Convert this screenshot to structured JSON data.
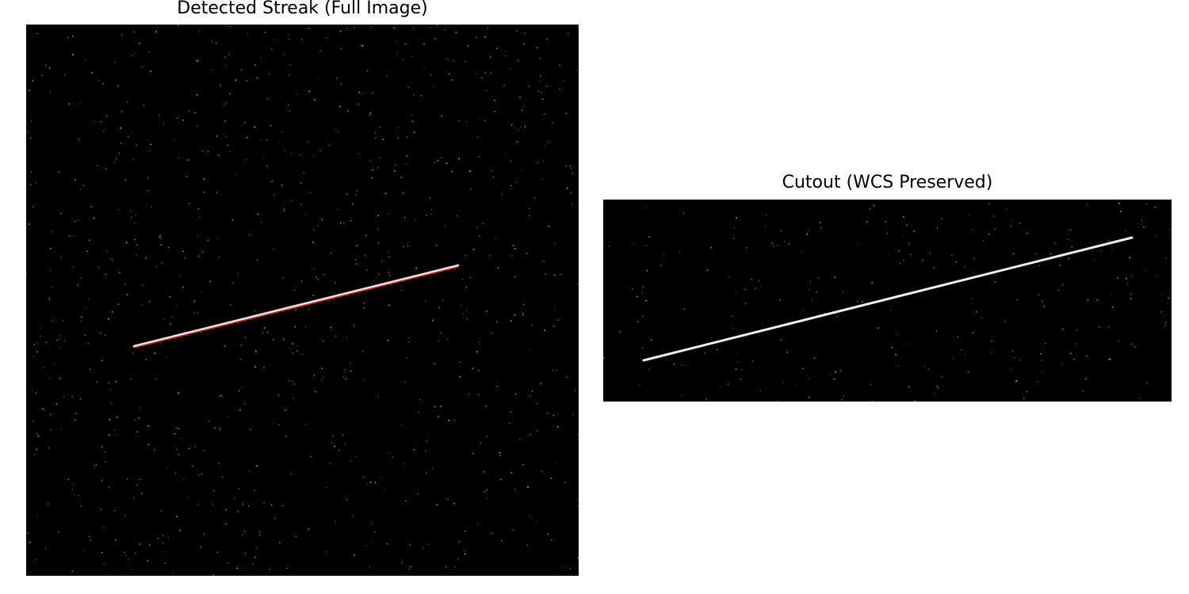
{
  "panels": {
    "full_image": {
      "title": "Detected Streak (Full Image)",
      "background_color": "#000000",
      "star_color": "#8a8a8a",
      "streak_color": "#e8e8e8",
      "detection_color": "#ff2020"
    },
    "cutout": {
      "title": "Cutout (WCS Preserved)",
      "background_color": "#000000",
      "star_color": "#8a8a8a",
      "streak_color": "#f0f0f0"
    }
  }
}
